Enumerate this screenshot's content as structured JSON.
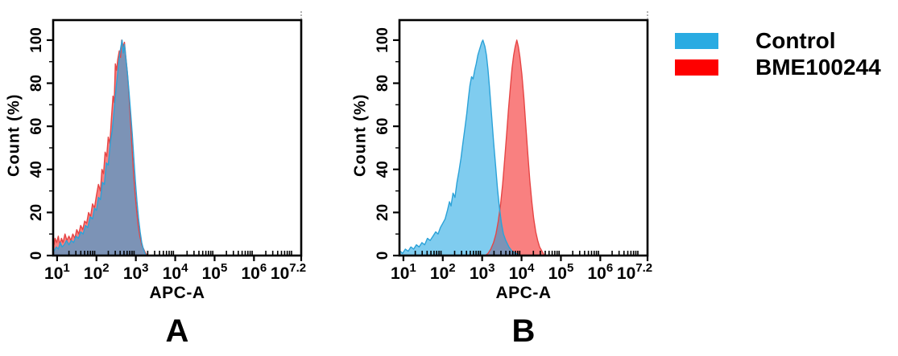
{
  "figure": {
    "background": "#FFFFFF"
  },
  "legend": {
    "position": "top-right",
    "items": [
      {
        "label": "Control",
        "color": "#29ABE2"
      },
      {
        "label": "BME100244",
        "color": "#FE0000"
      }
    ]
  },
  "chart_data": [
    {
      "type": "area",
      "panel_label": "A",
      "xlabel": "APC-A",
      "ylabel": "Count (%)",
      "x_scale": "log10",
      "x_range_log": [
        0.9,
        7.2
      ],
      "x_tick_exponents": [
        "1",
        "2",
        "3",
        "4",
        "5",
        "6",
        "7.2"
      ],
      "y_ticks": [
        0,
        20,
        40,
        60,
        80,
        100
      ],
      "y_minor_ticks": [
        10,
        30,
        50,
        70,
        90,
        110
      ],
      "y_range": [
        0,
        109.3
      ],
      "grid": false,
      "legend_position": "none",
      "series": [
        {
          "name": "BME100244",
          "stroke": "#E64545",
          "fill": "#F98080",
          "points_log10x_pct": [
            [
              0.92,
              5
            ],
            [
              0.95,
              8
            ],
            [
              0.99,
              6
            ],
            [
              1.03,
              9
            ],
            [
              1.07,
              5
            ],
            [
              1.11,
              8
            ],
            [
              1.15,
              6
            ],
            [
              1.2,
              10
            ],
            [
              1.25,
              7
            ],
            [
              1.3,
              9
            ],
            [
              1.35,
              7
            ],
            [
              1.4,
              10
            ],
            [
              1.45,
              8
            ],
            [
              1.5,
              12
            ],
            [
              1.55,
              10
            ],
            [
              1.6,
              14
            ],
            [
              1.65,
              12
            ],
            [
              1.7,
              16
            ],
            [
              1.75,
              15
            ],
            [
              1.8,
              20
            ],
            [
              1.85,
              18
            ],
            [
              1.9,
              24
            ],
            [
              1.95,
              22
            ],
            [
              2.0,
              28
            ],
            [
              2.05,
              33
            ],
            [
              2.1,
              30
            ],
            [
              2.14,
              40
            ],
            [
              2.18,
              38
            ],
            [
              2.22,
              48
            ],
            [
              2.26,
              46
            ],
            [
              2.3,
              55
            ],
            [
              2.34,
              52
            ],
            [
              2.38,
              64
            ],
            [
              2.42,
              74
            ],
            [
              2.45,
              71
            ],
            [
              2.48,
              89
            ],
            [
              2.51,
              86
            ],
            [
              2.54,
              91
            ],
            [
              2.58,
              95
            ],
            [
              2.61,
              92
            ],
            [
              2.64,
              100
            ],
            [
              2.68,
              97
            ],
            [
              2.71,
              99
            ],
            [
              2.74,
              93
            ],
            [
              2.78,
              86
            ],
            [
              2.82,
              76
            ],
            [
              2.86,
              64
            ],
            [
              2.9,
              51
            ],
            [
              2.94,
              39
            ],
            [
              2.98,
              29
            ],
            [
              3.02,
              21
            ],
            [
              3.06,
              14
            ],
            [
              3.1,
              9
            ],
            [
              3.15,
              5
            ],
            [
              3.2,
              3
            ],
            [
              3.25,
              1
            ],
            [
              3.3,
              0
            ]
          ]
        },
        {
          "name": "Control",
          "stroke": "#2BA2D8",
          "fill": "rgba(22,162,226,0.55)",
          "points_log10x_pct": [
            [
              0.92,
              2
            ],
            [
              0.98,
              4
            ],
            [
              1.03,
              3
            ],
            [
              1.08,
              6
            ],
            [
              1.13,
              4
            ],
            [
              1.18,
              5
            ],
            [
              1.24,
              7
            ],
            [
              1.3,
              5
            ],
            [
              1.36,
              7
            ],
            [
              1.42,
              6
            ],
            [
              1.48,
              9
            ],
            [
              1.54,
              8
            ],
            [
              1.6,
              11
            ],
            [
              1.66,
              10
            ],
            [
              1.72,
              14
            ],
            [
              1.78,
              13
            ],
            [
              1.84,
              18
            ],
            [
              1.9,
              17
            ],
            [
              1.95,
              22
            ],
            [
              2.0,
              21
            ],
            [
              2.05,
              27
            ],
            [
              2.1,
              26
            ],
            [
              2.15,
              34
            ],
            [
              2.2,
              33
            ],
            [
              2.25,
              43
            ],
            [
              2.3,
              42
            ],
            [
              2.35,
              52
            ],
            [
              2.4,
              58
            ],
            [
              2.45,
              68
            ],
            [
              2.5,
              78
            ],
            [
              2.54,
              85
            ],
            [
              2.58,
              92
            ],
            [
              2.62,
              97
            ],
            [
              2.65,
              100
            ],
            [
              2.68,
              94
            ],
            [
              2.71,
              98
            ],
            [
              2.75,
              91
            ],
            [
              2.79,
              84
            ],
            [
              2.83,
              75
            ],
            [
              2.87,
              66
            ],
            [
              2.91,
              56
            ],
            [
              2.95,
              45
            ],
            [
              2.99,
              34
            ],
            [
              3.03,
              25
            ],
            [
              3.07,
              17
            ],
            [
              3.11,
              11
            ],
            [
              3.15,
              6
            ],
            [
              3.19,
              3
            ],
            [
              3.23,
              1
            ],
            [
              3.27,
              0
            ]
          ]
        }
      ]
    },
    {
      "type": "area",
      "panel_label": "B",
      "xlabel": "APC-A",
      "ylabel": "Count (%)",
      "x_scale": "log10",
      "x_range_log": [
        0.9,
        7.2
      ],
      "x_tick_exponents": [
        "1",
        "2",
        "3",
        "4",
        "5",
        "6",
        "7.2"
      ],
      "y_ticks": [
        0,
        20,
        40,
        60,
        80,
        100
      ],
      "y_minor_ticks": [
        10,
        30,
        50,
        70,
        90,
        110
      ],
      "y_range": [
        0,
        109.3
      ],
      "grid": false,
      "legend_position": "none",
      "series": [
        {
          "name": "BME100244",
          "stroke": "#E64545",
          "fill": "#F98080",
          "points_log10x_pct": [
            [
              3.08,
              0
            ],
            [
              3.15,
              1
            ],
            [
              3.22,
              3
            ],
            [
              3.29,
              6
            ],
            [
              3.35,
              10
            ],
            [
              3.41,
              16
            ],
            [
              3.47,
              24
            ],
            [
              3.52,
              33
            ],
            [
              3.57,
              44
            ],
            [
              3.62,
              56
            ],
            [
              3.67,
              68
            ],
            [
              3.72,
              79
            ],
            [
              3.76,
              87
            ],
            [
              3.8,
              93
            ],
            [
              3.84,
              97
            ],
            [
              3.88,
              100
            ],
            [
              3.92,
              97
            ],
            [
              3.96,
              92
            ],
            [
              4.01,
              84
            ],
            [
              4.06,
              73
            ],
            [
              4.11,
              60
            ],
            [
              4.16,
              47
            ],
            [
              4.21,
              35
            ],
            [
              4.26,
              25
            ],
            [
              4.31,
              17
            ],
            [
              4.36,
              11
            ],
            [
              4.41,
              7
            ],
            [
              4.46,
              4
            ],
            [
              4.52,
              2
            ],
            [
              4.58,
              0
            ]
          ]
        },
        {
          "name": "Control",
          "stroke": "#2BA2D8",
          "fill": "rgba(22,162,226,0.55)",
          "points_log10x_pct": [
            [
              0.92,
              2
            ],
            [
              0.98,
              1
            ],
            [
              1.05,
              3
            ],
            [
              1.12,
              2
            ],
            [
              1.19,
              4
            ],
            [
              1.26,
              3
            ],
            [
              1.33,
              5
            ],
            [
              1.4,
              4
            ],
            [
              1.47,
              6
            ],
            [
              1.54,
              5
            ],
            [
              1.61,
              8
            ],
            [
              1.68,
              7
            ],
            [
              1.75,
              9
            ],
            [
              1.82,
              11
            ],
            [
              1.88,
              10
            ],
            [
              1.94,
              13
            ],
            [
              2.0,
              15
            ],
            [
              2.06,
              17
            ],
            [
              2.12,
              21
            ],
            [
              2.17,
              25
            ],
            [
              2.21,
              23
            ],
            [
              2.26,
              29
            ],
            [
              2.31,
              27
            ],
            [
              2.36,
              34
            ],
            [
              2.41,
              39
            ],
            [
              2.46,
              45
            ],
            [
              2.51,
              52
            ],
            [
              2.56,
              59
            ],
            [
              2.61,
              66
            ],
            [
              2.65,
              73
            ],
            [
              2.69,
              79
            ],
            [
              2.73,
              83
            ],
            [
              2.77,
              82
            ],
            [
              2.81,
              86
            ],
            [
              2.85,
              89
            ],
            [
              2.89,
              93
            ],
            [
              2.94,
              96
            ],
            [
              2.99,
              99
            ],
            [
              3.02,
              100
            ],
            [
              3.07,
              97
            ],
            [
              3.11,
              93
            ],
            [
              3.15,
              86
            ],
            [
              3.19,
              77
            ],
            [
              3.24,
              65
            ],
            [
              3.29,
              53
            ],
            [
              3.34,
              42
            ],
            [
              3.39,
              31
            ],
            [
              3.44,
              22
            ],
            [
              3.49,
              15
            ],
            [
              3.54,
              10
            ],
            [
              3.6,
              7
            ],
            [
              3.68,
              4
            ],
            [
              3.76,
              2
            ],
            [
              3.86,
              1
            ],
            [
              3.96,
              0
            ]
          ]
        }
      ]
    }
  ]
}
